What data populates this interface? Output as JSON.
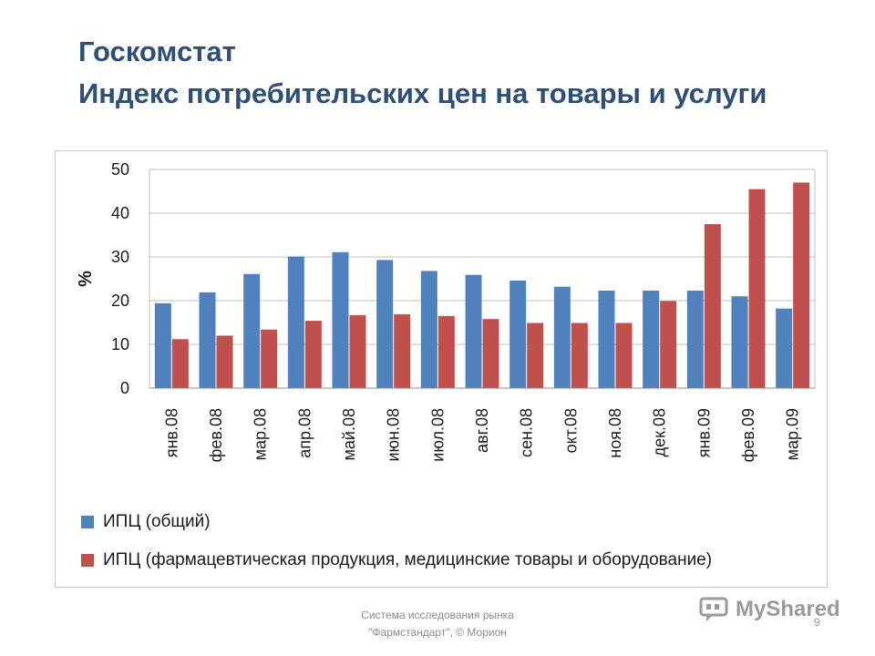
{
  "header": {
    "title_line1": "Госкомстат",
    "title_line2": "Индекс потребительских цен на товары и услуги"
  },
  "chart_data": {
    "type": "bar",
    "categories": [
      "янв.08",
      "фев.08",
      "мар.08",
      "апр.08",
      "май.08",
      "июн.08",
      "июл.08",
      "авг.08",
      "сен.08",
      "окт.08",
      "ноя.08",
      "дек.08",
      "янв.09",
      "фев.09",
      "мар.09"
    ],
    "series": [
      {
        "name": "ИПЦ (общий)",
        "color": "#4f81bd",
        "values": [
          19.4,
          21.9,
          26.1,
          30.1,
          31.1,
          29.3,
          26.8,
          25.9,
          24.6,
          23.2,
          22.3,
          22.3,
          22.3,
          21.0,
          18.2
        ]
      },
      {
        "name": "ИПЦ (фармацевтическая продукция, медицинские товары и оборудование)",
        "color": "#c0504d",
        "values": [
          11.2,
          12.0,
          13.4,
          15.4,
          16.7,
          16.9,
          16.5,
          15.8,
          14.9,
          14.9,
          14.9,
          19.9,
          37.5,
          45.5,
          47.0
        ]
      }
    ],
    "ylabel": "%",
    "ylim": [
      0,
      50
    ],
    "yticks": [
      "0",
      "10",
      "20",
      "30",
      "40",
      "50"
    ],
    "grid": true,
    "legend_position": "bottom"
  },
  "footer": {
    "line1": "Система исследования рынка",
    "line2": "\"Фармстандарт\", © Морион",
    "page_number": "9"
  },
  "watermark": {
    "text": "MyShared",
    "icon": "chat-bubble-icon"
  }
}
